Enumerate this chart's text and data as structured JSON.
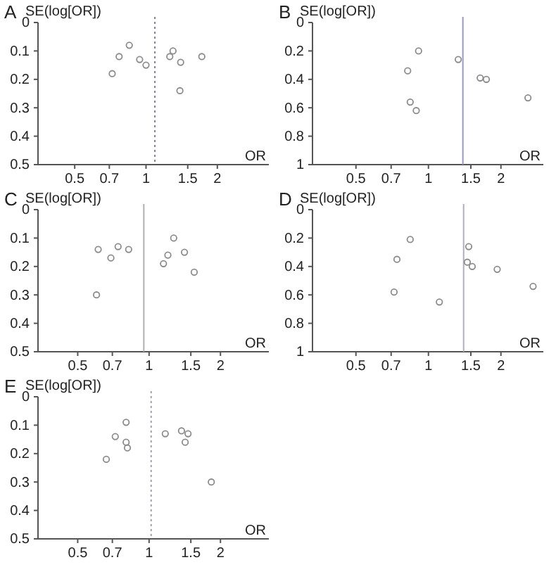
{
  "chart_data": [
    {
      "type": "scatter",
      "title": "A",
      "xlabel": "OR",
      "ylabel": "SE(log[OR])",
      "log": "x",
      "marker": "circle",
      "xlim": [
        0.35,
        3.3
      ],
      "xticks": [
        0.5,
        0.7,
        1,
        1.5,
        2
      ],
      "ylim": [
        0.5,
        0
      ],
      "yticks": [
        0,
        0.1,
        0.2,
        0.3,
        0.4,
        0.5
      ],
      "series": [
        {
          "color": "#8c8c8c",
          "x": [
            0.72,
            0.77,
            0.85,
            0.94,
            1.0,
            1.26,
            1.3,
            1.4,
            1.72,
            1.39
          ],
          "values": [
            0.18,
            0.12,
            0.08,
            0.13,
            0.15,
            0.12,
            0.1,
            0.14,
            0.12,
            0.24
          ]
        }
      ],
      "ref_lines": [
        {
          "axis": "x",
          "value": 1.09,
          "color": "#8080a0",
          "line_style": "dotted"
        }
      ]
    },
    {
      "type": "scatter",
      "title": "B",
      "xlabel": "OR",
      "ylabel": "SE(log[OR])",
      "log": "x",
      "marker": "circle",
      "xlim": [
        0.33,
        3.0
      ],
      "xticks": [
        0.5,
        0.7,
        1,
        1.5,
        2
      ],
      "ylim": [
        1,
        0
      ],
      "yticks": [
        0,
        0.2,
        0.4,
        0.6,
        0.8,
        1
      ],
      "series": [
        {
          "color": "#8c8c8c",
          "x": [
            0.91,
            0.82,
            0.84,
            0.89,
            1.33,
            1.64,
            1.74,
            2.59
          ],
          "values": [
            0.2,
            0.34,
            0.56,
            0.62,
            0.26,
            0.39,
            0.4,
            0.53
          ]
        }
      ],
      "ref_lines": [
        {
          "axis": "x",
          "value": 1.39,
          "color": "#9a9ac0",
          "line_style": "solid"
        }
      ]
    },
    {
      "type": "scatter",
      "title": "C",
      "xlabel": "OR",
      "ylabel": "SE(log[OR])",
      "log": "x",
      "marker": "circle",
      "xlim": [
        0.34,
        3.2
      ],
      "xticks": [
        0.5,
        0.7,
        1,
        1.5,
        2
      ],
      "ylim": [
        0.5,
        0
      ],
      "yticks": [
        0,
        0.1,
        0.2,
        0.3,
        0.4,
        0.5
      ],
      "series": [
        {
          "color": "#8c8c8c",
          "x": [
            0.61,
            0.69,
            0.74,
            0.82,
            0.6,
            1.15,
            1.2,
            1.27,
            1.41,
            1.55
          ],
          "values": [
            0.14,
            0.17,
            0.13,
            0.14,
            0.3,
            0.19,
            0.16,
            0.1,
            0.15,
            0.22
          ]
        }
      ],
      "ref_lines": [
        {
          "axis": "x",
          "value": 0.95,
          "color": "#b0b0b0",
          "line_style": "solid"
        }
      ]
    },
    {
      "type": "scatter",
      "title": "D",
      "xlabel": "OR",
      "ylabel": "SE(log[OR])",
      "log": "x",
      "marker": "circle",
      "xlim": [
        0.33,
        3.0
      ],
      "xticks": [
        0.5,
        0.7,
        1,
        1.5,
        2
      ],
      "ylim": [
        1,
        0
      ],
      "yticks": [
        0,
        0.2,
        0.4,
        0.6,
        0.8,
        1
      ],
      "series": [
        {
          "color": "#8c8c8c",
          "x": [
            0.84,
            0.74,
            0.72,
            1.11,
            1.47,
            1.45,
            1.52,
            1.93,
            2.72
          ],
          "values": [
            0.21,
            0.35,
            0.58,
            0.65,
            0.26,
            0.37,
            0.4,
            0.42,
            0.54
          ]
        }
      ],
      "ref_lines": [
        {
          "axis": "x",
          "value": 1.4,
          "color": "#b0b0c0",
          "line_style": "solid"
        }
      ]
    },
    {
      "type": "scatter",
      "title": "E",
      "xlabel": "OR",
      "ylabel": "SE(log[OR])",
      "log": "x",
      "marker": "circle",
      "xlim": [
        0.34,
        3.2
      ],
      "xticks": [
        0.5,
        0.7,
        1,
        1.5,
        2
      ],
      "ylim": [
        0.5,
        0
      ],
      "yticks": [
        0,
        0.1,
        0.2,
        0.3,
        0.4,
        0.5
      ],
      "series": [
        {
          "color": "#8c8c8c",
          "x": [
            0.8,
            0.72,
            0.8,
            0.81,
            0.66,
            1.17,
            1.37,
            1.46,
            1.42,
            1.83
          ],
          "values": [
            0.09,
            0.14,
            0.16,
            0.18,
            0.22,
            0.13,
            0.12,
            0.13,
            0.16,
            0.3
          ]
        }
      ],
      "ref_lines": [
        {
          "axis": "x",
          "value": 1.02,
          "color": "#a0a0b0",
          "line_style": "dotted"
        }
      ]
    }
  ]
}
